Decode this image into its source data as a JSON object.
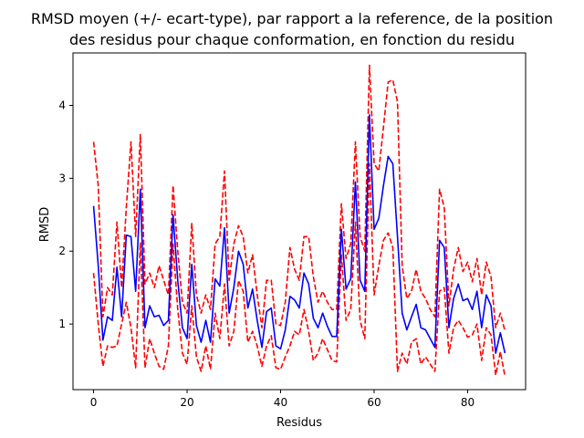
{
  "chart_data": {
    "type": "line",
    "title_lines": [
      "RMSD moyen (+/- ecart-type), par rapport a la reference, de la position",
      "des residus pour chaque conformation, en fonction du residu"
    ],
    "xlabel": "Residus",
    "ylabel": "RMSD",
    "xlim": [
      -4.4,
      92.4
    ],
    "ylim": [
      0.1,
      4.72
    ],
    "xticks": [
      0,
      20,
      40,
      60,
      80
    ],
    "yticks": [
      1,
      2,
      3,
      4
    ],
    "grid": false,
    "series": [
      {
        "role": "mean",
        "color": "#0000ff",
        "style": "solid",
        "x": [
          0,
          1,
          2,
          3,
          4,
          5,
          6,
          7,
          8,
          9,
          10,
          11,
          12,
          13,
          14,
          15,
          16,
          17,
          18,
          19,
          20,
          21,
          22,
          23,
          24,
          25,
          26,
          27,
          28,
          29,
          30,
          31,
          32,
          33,
          34,
          35,
          36,
          37,
          38,
          39,
          40,
          41,
          42,
          43,
          44,
          45,
          46,
          47,
          48,
          49,
          50,
          51,
          52,
          53,
          54,
          55,
          56,
          57,
          58,
          59,
          60,
          61,
          62,
          63,
          64,
          65,
          66,
          67,
          68,
          69,
          70,
          71,
          72,
          73,
          74,
          75,
          76,
          77,
          78,
          79,
          80,
          81,
          82,
          83,
          84,
          85,
          86,
          87,
          88
        ],
        "y": [
          2.62,
          1.8,
          0.78,
          1.1,
          1.05,
          1.78,
          1.1,
          2.22,
          2.2,
          1.45,
          2.85,
          0.95,
          1.25,
          1.1,
          1.12,
          0.98,
          1.05,
          2.5,
          1.6,
          0.95,
          0.8,
          1.82,
          0.98,
          0.75,
          1.05,
          0.75,
          1.62,
          1.52,
          2.32,
          1.15,
          1.5,
          2.0,
          1.82,
          1.22,
          1.48,
          1.05,
          0.68,
          1.17,
          1.22,
          0.7,
          0.66,
          0.92,
          1.38,
          1.33,
          1.22,
          1.7,
          1.55,
          1.08,
          0.95,
          1.15,
          0.97,
          0.83,
          0.83,
          2.3,
          1.48,
          1.62,
          2.95,
          1.6,
          1.45,
          3.87,
          2.3,
          2.45,
          2.9,
          3.3,
          3.2,
          2.2,
          1.15,
          0.92,
          1.1,
          1.27,
          0.95,
          0.92,
          0.8,
          0.68,
          2.15,
          2.05,
          0.95,
          1.35,
          1.55,
          1.32,
          1.35,
          1.2,
          1.45,
          0.95,
          1.4,
          1.25,
          0.6,
          0.88,
          0.6
        ]
      },
      {
        "role": "upper",
        "color": "#ff0000",
        "style": "dashed",
        "x": [
          0,
          1,
          2,
          3,
          4,
          5,
          6,
          7,
          8,
          9,
          10,
          11,
          12,
          13,
          14,
          15,
          16,
          17,
          18,
          19,
          20,
          21,
          22,
          23,
          24,
          25,
          26,
          27,
          28,
          29,
          30,
          31,
          32,
          33,
          34,
          35,
          36,
          37,
          38,
          39,
          40,
          41,
          42,
          43,
          44,
          45,
          46,
          47,
          48,
          49,
          50,
          51,
          52,
          53,
          54,
          55,
          56,
          57,
          58,
          59,
          60,
          61,
          62,
          63,
          64,
          65,
          66,
          67,
          68,
          69,
          70,
          71,
          72,
          73,
          74,
          75,
          76,
          77,
          78,
          79,
          80,
          81,
          82,
          83,
          84,
          85,
          86,
          87,
          88
        ],
        "y": [
          3.5,
          2.9,
          1.1,
          1.5,
          1.4,
          2.4,
          1.5,
          2.6,
          3.5,
          2.2,
          3.6,
          1.55,
          1.7,
          1.5,
          1.8,
          1.6,
          1.4,
          2.9,
          2.0,
          1.3,
          1.15,
          2.38,
          1.4,
          1.15,
          1.4,
          1.2,
          2.1,
          2.2,
          3.1,
          1.6,
          2.1,
          2.35,
          2.2,
          1.7,
          1.95,
          1.4,
          0.95,
          1.6,
          1.6,
          1.0,
          0.98,
          1.3,
          2.05,
          1.75,
          1.6,
          2.2,
          2.2,
          1.65,
          1.3,
          1.45,
          1.3,
          1.2,
          1.2,
          2.65,
          1.9,
          2.1,
          3.5,
          2.2,
          2.0,
          4.55,
          3.2,
          3.1,
          3.7,
          4.32,
          4.35,
          4.05,
          1.8,
          1.35,
          1.45,
          1.75,
          1.45,
          1.35,
          1.2,
          1.1,
          2.85,
          2.6,
          1.25,
          1.75,
          2.05,
          1.72,
          1.85,
          1.58,
          1.9,
          1.4,
          1.85,
          1.65,
          0.95,
          1.15,
          0.9
        ]
      },
      {
        "role": "lower",
        "color": "#ff0000",
        "style": "dashed",
        "x": [
          0,
          1,
          2,
          3,
          4,
          5,
          6,
          7,
          8,
          9,
          10,
          11,
          12,
          13,
          14,
          15,
          16,
          17,
          18,
          19,
          20,
          21,
          22,
          23,
          24,
          25,
          26,
          27,
          28,
          29,
          30,
          31,
          32,
          33,
          34,
          35,
          36,
          37,
          38,
          39,
          40,
          41,
          42,
          43,
          44,
          45,
          46,
          47,
          48,
          49,
          50,
          51,
          52,
          53,
          54,
          55,
          56,
          57,
          58,
          59,
          60,
          61,
          62,
          63,
          64,
          65,
          66,
          67,
          68,
          69,
          70,
          71,
          72,
          73,
          74,
          75,
          76,
          77,
          78,
          79,
          80,
          81,
          82,
          83,
          84,
          85,
          86,
          87,
          88
        ],
        "y": [
          1.7,
          1.0,
          0.42,
          0.7,
          0.68,
          0.7,
          1.0,
          1.3,
          0.95,
          0.4,
          2.12,
          0.4,
          0.8,
          0.6,
          0.42,
          0.38,
          0.7,
          2.1,
          1.2,
          0.6,
          0.45,
          1.25,
          0.55,
          0.35,
          0.7,
          0.38,
          1.15,
          0.8,
          1.55,
          0.7,
          0.9,
          1.6,
          1.45,
          0.75,
          0.9,
          0.7,
          0.42,
          0.7,
          0.84,
          0.4,
          0.38,
          0.55,
          0.7,
          0.9,
          0.85,
          1.2,
          0.9,
          0.5,
          0.6,
          0.8,
          0.65,
          0.5,
          0.48,
          1.95,
          1.05,
          1.2,
          2.4,
          1.05,
          0.8,
          3.2,
          1.4,
          1.8,
          2.15,
          2.25,
          2.05,
          0.35,
          0.6,
          0.45,
          0.75,
          0.8,
          0.45,
          0.55,
          0.45,
          0.35,
          1.45,
          1.5,
          0.6,
          0.95,
          1.05,
          0.95,
          0.82,
          0.85,
          1.0,
          0.5,
          0.95,
          0.85,
          0.3,
          0.62,
          0.28
        ]
      }
    ]
  }
}
